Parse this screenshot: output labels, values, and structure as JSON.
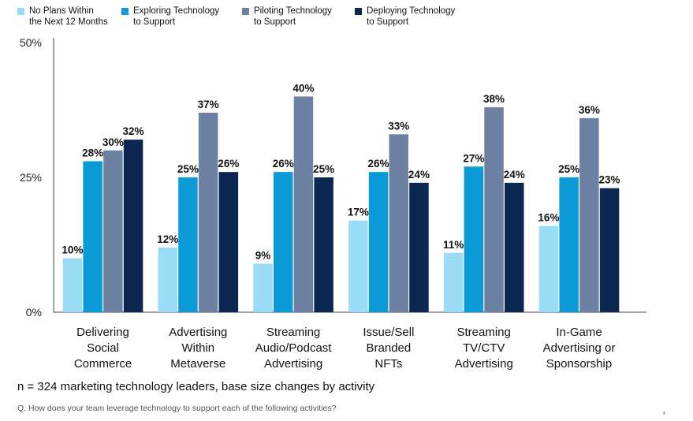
{
  "chart_data": {
    "type": "bar",
    "categories": [
      "Delivering\nSocial\nCommerce",
      "Advertising\nWithin\nMetaverse",
      "Streaming\nAudio/Podcast\nAdvertising",
      "Issue/Sell\nBranded\nNFTs",
      "Streaming\nTV/CTV\nAdvertising",
      "In-Game\nAdvertising or\nSponsorship"
    ],
    "series": [
      {
        "name": "No Plans Within\nthe Next 12 Months",
        "color": "#9adcf5",
        "values": [
          10,
          12,
          9,
          17,
          11,
          16
        ],
        "labels": [
          "10%",
          "12%",
          "9%",
          "17%",
          "11%",
          "16%"
        ]
      },
      {
        "name": "Exploring Technology\nto Support",
        "color": "#0b9ad8",
        "values": [
          28,
          25,
          26,
          26,
          27,
          25
        ],
        "labels": [
          "28%",
          "25%",
          "26%",
          "26%",
          "27%",
          "25%"
        ]
      },
      {
        "name": "Piloting Technology\nto Support",
        "color": "#6d82a3",
        "values": [
          30,
          37,
          40,
          33,
          38,
          36
        ],
        "labels": [
          "30%",
          "37%",
          "40%",
          "33%",
          "38%",
          "36%"
        ]
      },
      {
        "name": "Deploying Technology\nto Support",
        "color": "#0c2752",
        "values": [
          32,
          26,
          25,
          24,
          24,
          23
        ],
        "labels": [
          "32%",
          "26%",
          "25%",
          "24%",
          "24%",
          "23%"
        ]
      }
    ],
    "yticks": [
      0,
      25,
      50
    ],
    "ytick_labels": [
      "0%",
      "25%",
      "50%"
    ],
    "ylim": [
      0,
      50
    ],
    "xlabel": "",
    "ylabel": "",
    "grid": false,
    "legend_position": "top-left"
  },
  "note": "n = 324 marketing technology leaders, base size changes by activity",
  "question": "Q. How does your team leverage technology to support each of the following activities?",
  "corner_mark": "'"
}
